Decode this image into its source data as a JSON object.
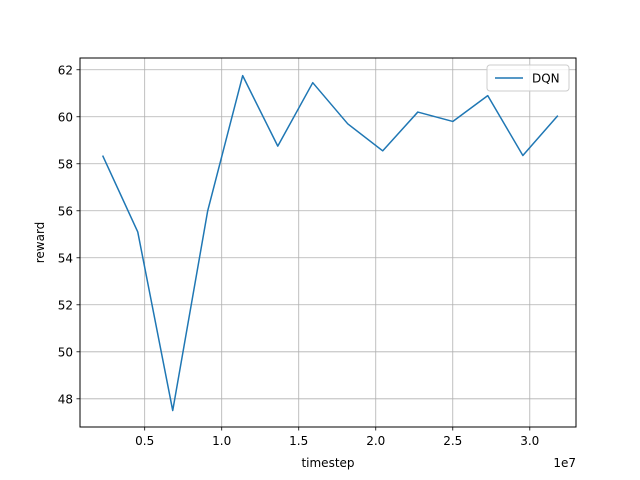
{
  "chart_data": {
    "type": "line",
    "title": "",
    "xlabel": "timestep",
    "ylabel": "reward",
    "x_offset_text": "1e7",
    "xlim": [
      0.08,
      3.3
    ],
    "ylim": [
      46.8,
      62.5
    ],
    "xticks": [
      {
        "value": 0.5,
        "label": "0.5"
      },
      {
        "value": 1.0,
        "label": "1.0"
      },
      {
        "value": 1.5,
        "label": "1.5"
      },
      {
        "value": 2.0,
        "label": "2.0"
      },
      {
        "value": 2.5,
        "label": "2.5"
      },
      {
        "value": 3.0,
        "label": "3.0"
      }
    ],
    "yticks": [
      {
        "value": 48,
        "label": "48"
      },
      {
        "value": 50,
        "label": "50"
      },
      {
        "value": 52,
        "label": "52"
      },
      {
        "value": 54,
        "label": "54"
      },
      {
        "value": 56,
        "label": "56"
      },
      {
        "value": 58,
        "label": "58"
      },
      {
        "value": 60,
        "label": "60"
      },
      {
        "value": 62,
        "label": "62"
      }
    ],
    "grid": true,
    "legend_position": "top-right",
    "series": [
      {
        "name": "DQN",
        "color": "#1f77b4",
        "x": [
          0.227,
          0.455,
          0.682,
          0.909,
          1.136,
          1.364,
          1.591,
          1.818,
          2.045,
          2.273,
          2.5,
          2.727,
          2.955,
          3.182
        ],
        "y": [
          58.35,
          55.1,
          47.5,
          56.0,
          61.75,
          58.75,
          61.45,
          59.7,
          58.55,
          60.2,
          59.8,
          60.9,
          58.35,
          60.05
        ]
      }
    ]
  }
}
